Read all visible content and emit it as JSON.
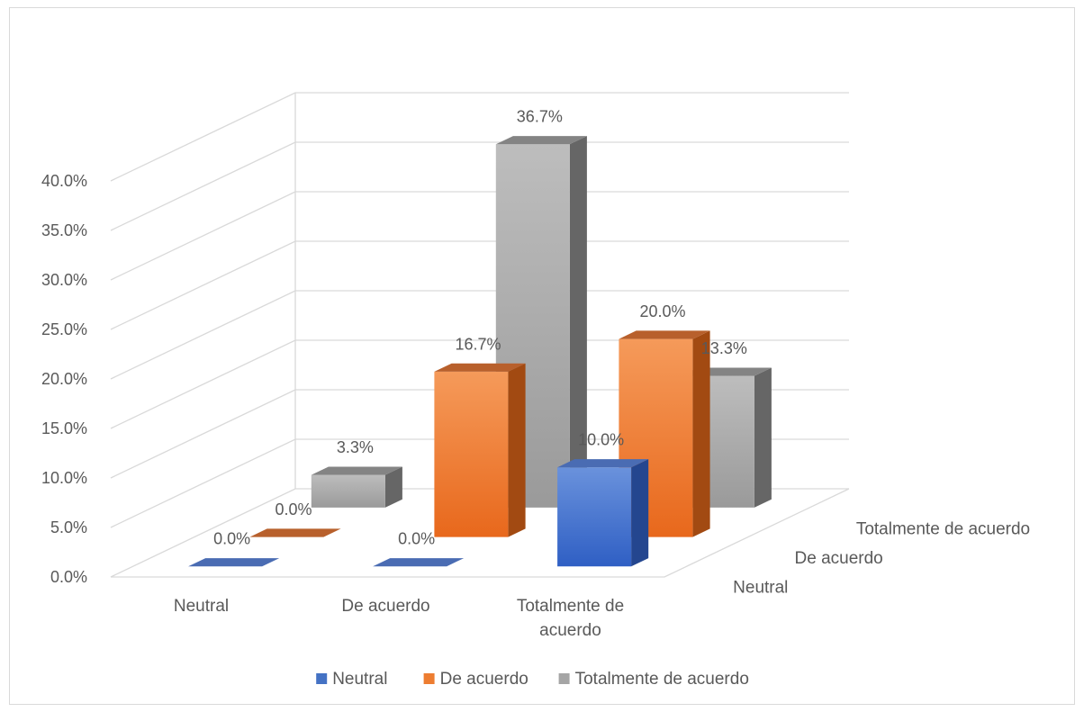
{
  "chart_data": {
    "type": "bar",
    "variant": "3d-column",
    "title": "",
    "xlabel": "",
    "ylabel": "",
    "ylim": [
      0,
      40
    ],
    "yticks": [
      "0.0%",
      "5.0%",
      "10.0%",
      "15.0%",
      "20.0%",
      "25.0%",
      "30.0%",
      "35.0%",
      "40.0%"
    ],
    "categories": [
      "Neutral",
      "De acuerdo",
      "Totalmente de acuerdo"
    ],
    "series": [
      {
        "name": "Neutral",
        "color": "#4472c4",
        "values": [
          0.0,
          0.0,
          10.0
        ],
        "labels": [
          "0.0%",
          "0.0%",
          "10.0%"
        ]
      },
      {
        "name": "De acuerdo",
        "color": "#ed7d31",
        "values": [
          0.0,
          16.7,
          20.0
        ],
        "labels": [
          "0.0%",
          "16.7%",
          "20.0%"
        ]
      },
      {
        "name": "Totalmente de acuerdo",
        "color": "#a5a5a5",
        "values": [
          3.3,
          36.7,
          13.3
        ],
        "labels": [
          "3.3%",
          "36.7%",
          "13.3%"
        ]
      }
    ],
    "depth_labels": [
      "Neutral",
      "De acuerdo",
      "Totalmente de acuerdo"
    ],
    "legend": {
      "position": "bottom",
      "entries": [
        "Neutral",
        "De acuerdo",
        "Totalmente de acuerdo"
      ]
    },
    "grid": true
  }
}
